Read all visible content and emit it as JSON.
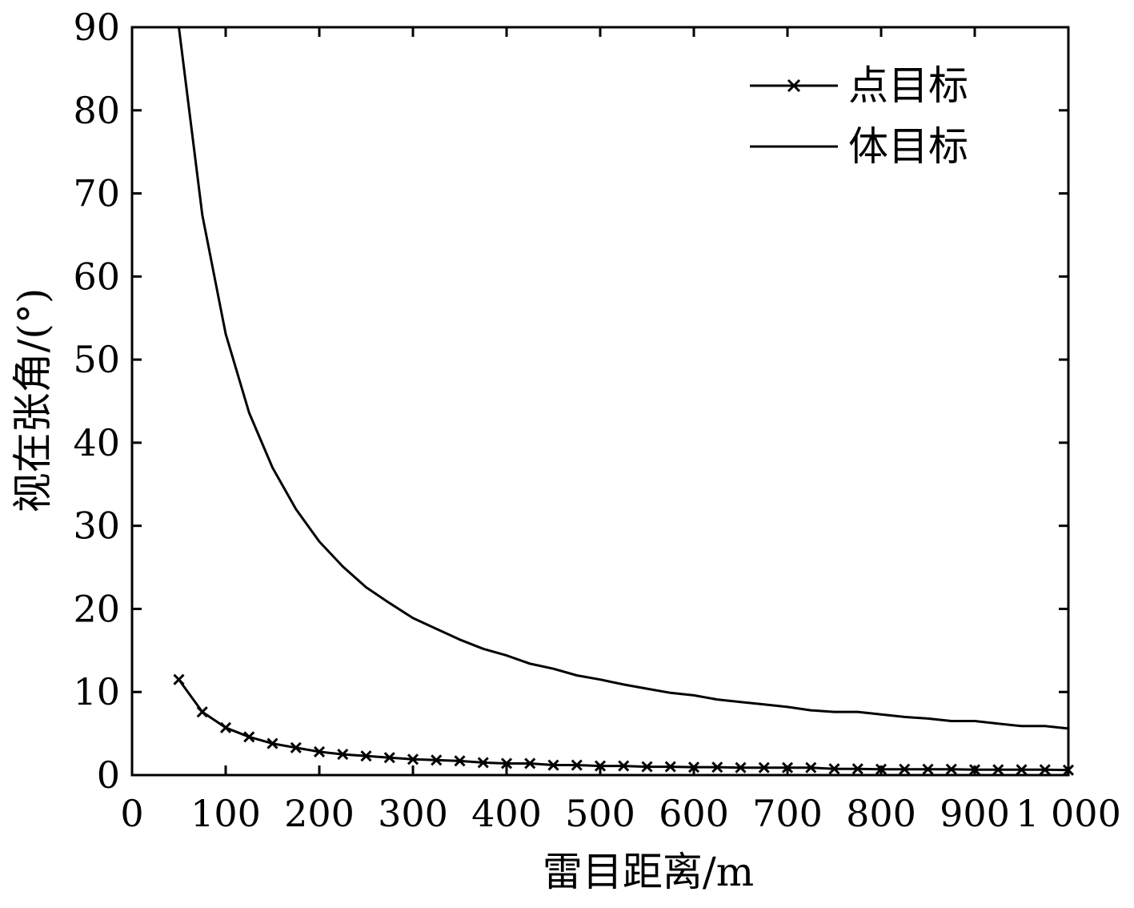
{
  "chart_data": {
    "type": "line",
    "title": "",
    "xlabel": "雷目距离/m",
    "ylabel": "视在张角/(°)",
    "xlim": [
      0,
      1000
    ],
    "ylim": [
      0,
      90
    ],
    "x_ticks": [
      0,
      100,
      200,
      300,
      400,
      500,
      600,
      700,
      800,
      900,
      1000
    ],
    "x_tick_labels": [
      "0",
      "100",
      "200",
      "300",
      "400",
      "500",
      "600",
      "700",
      "800",
      "900",
      "1 000"
    ],
    "y_ticks": [
      0,
      10,
      20,
      30,
      40,
      50,
      60,
      70,
      80,
      90
    ],
    "y_tick_labels": [
      "0",
      "10",
      "20",
      "30",
      "40",
      "50",
      "60",
      "70",
      "80",
      "90"
    ],
    "grid": false,
    "legend_position": "top-right",
    "series": [
      {
        "name": "点目标",
        "marker": "x",
        "color": "#000000",
        "x": [
          50,
          75,
          100,
          125,
          150,
          175,
          200,
          225,
          250,
          275,
          300,
          325,
          350,
          375,
          400,
          425,
          450,
          475,
          500,
          525,
          550,
          575,
          600,
          625,
          650,
          675,
          700,
          725,
          750,
          775,
          800,
          825,
          850,
          875,
          900,
          925,
          950,
          975,
          1000
        ],
        "y": [
          11.5,
          7.6,
          5.7,
          4.6,
          3.8,
          3.3,
          2.8,
          2.5,
          2.3,
          2.1,
          1.9,
          1.8,
          1.7,
          1.5,
          1.4,
          1.4,
          1.2,
          1.2,
          1.1,
          1.1,
          1.0,
          1.0,
          0.95,
          0.95,
          0.9,
          0.9,
          0.9,
          0.9,
          0.75,
          0.75,
          0.7,
          0.7,
          0.7,
          0.7,
          0.65,
          0.65,
          0.65,
          0.65,
          0.6
        ]
      },
      {
        "name": "体目标",
        "marker": "none",
        "color": "#000000",
        "x": [
          50,
          75,
          100,
          125,
          150,
          175,
          200,
          225,
          250,
          275,
          300,
          325,
          350,
          375,
          400,
          425,
          450,
          475,
          500,
          525,
          550,
          575,
          600,
          625,
          650,
          675,
          700,
          725,
          750,
          775,
          800,
          825,
          850,
          875,
          900,
          925,
          950,
          975,
          1000
        ],
        "y": [
          90,
          67.4,
          53.1,
          43.6,
          37.0,
          32.0,
          28.1,
          25.1,
          22.6,
          20.7,
          18.9,
          17.6,
          16.3,
          15.2,
          14.4,
          13.4,
          12.8,
          12.0,
          11.5,
          10.9,
          10.4,
          9.9,
          9.6,
          9.1,
          8.8,
          8.5,
          8.2,
          7.8,
          7.6,
          7.6,
          7.3,
          7.0,
          6.8,
          6.5,
          6.5,
          6.2,
          5.9,
          5.9,
          5.6
        ]
      }
    ]
  }
}
